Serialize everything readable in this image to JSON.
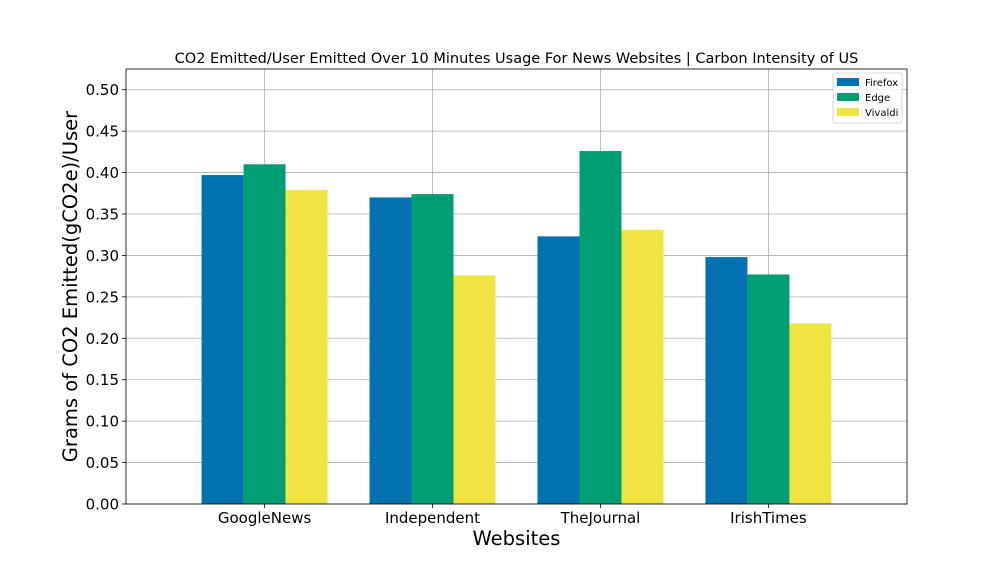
{
  "chart_data": {
    "type": "bar",
    "title": "CO2 Emitted/User Emitted Over 10 Minutes Usage For News Websites | Carbon Intensity of US",
    "xlabel": "Websites",
    "ylabel": "Grams of CO2 Emitted(gCO2e)/User",
    "categories": [
      "GoogleNews",
      "Independent",
      "TheJournal",
      "IrishTimes"
    ],
    "series": [
      {
        "name": "Firefox",
        "color": "#0072b2",
        "values": [
          0.397,
          0.37,
          0.323,
          0.298
        ]
      },
      {
        "name": "Edge",
        "color": "#009e73",
        "values": [
          0.41,
          0.374,
          0.426,
          0.277
        ]
      },
      {
        "name": "Vivaldi",
        "color": "#f0e442",
        "values": [
          0.379,
          0.276,
          0.331,
          0.218
        ]
      }
    ],
    "ylim": [
      0,
      0.525
    ],
    "yticks": [
      "0.00",
      "0.05",
      "0.10",
      "0.15",
      "0.20",
      "0.25",
      "0.30",
      "0.35",
      "0.40",
      "0.45",
      "0.50"
    ],
    "ytick_values": [
      0,
      0.05,
      0.1,
      0.15,
      0.2,
      0.25,
      0.3,
      0.35,
      0.4,
      0.45,
      0.5
    ],
    "grid": true,
    "legend_position": "top-right"
  }
}
